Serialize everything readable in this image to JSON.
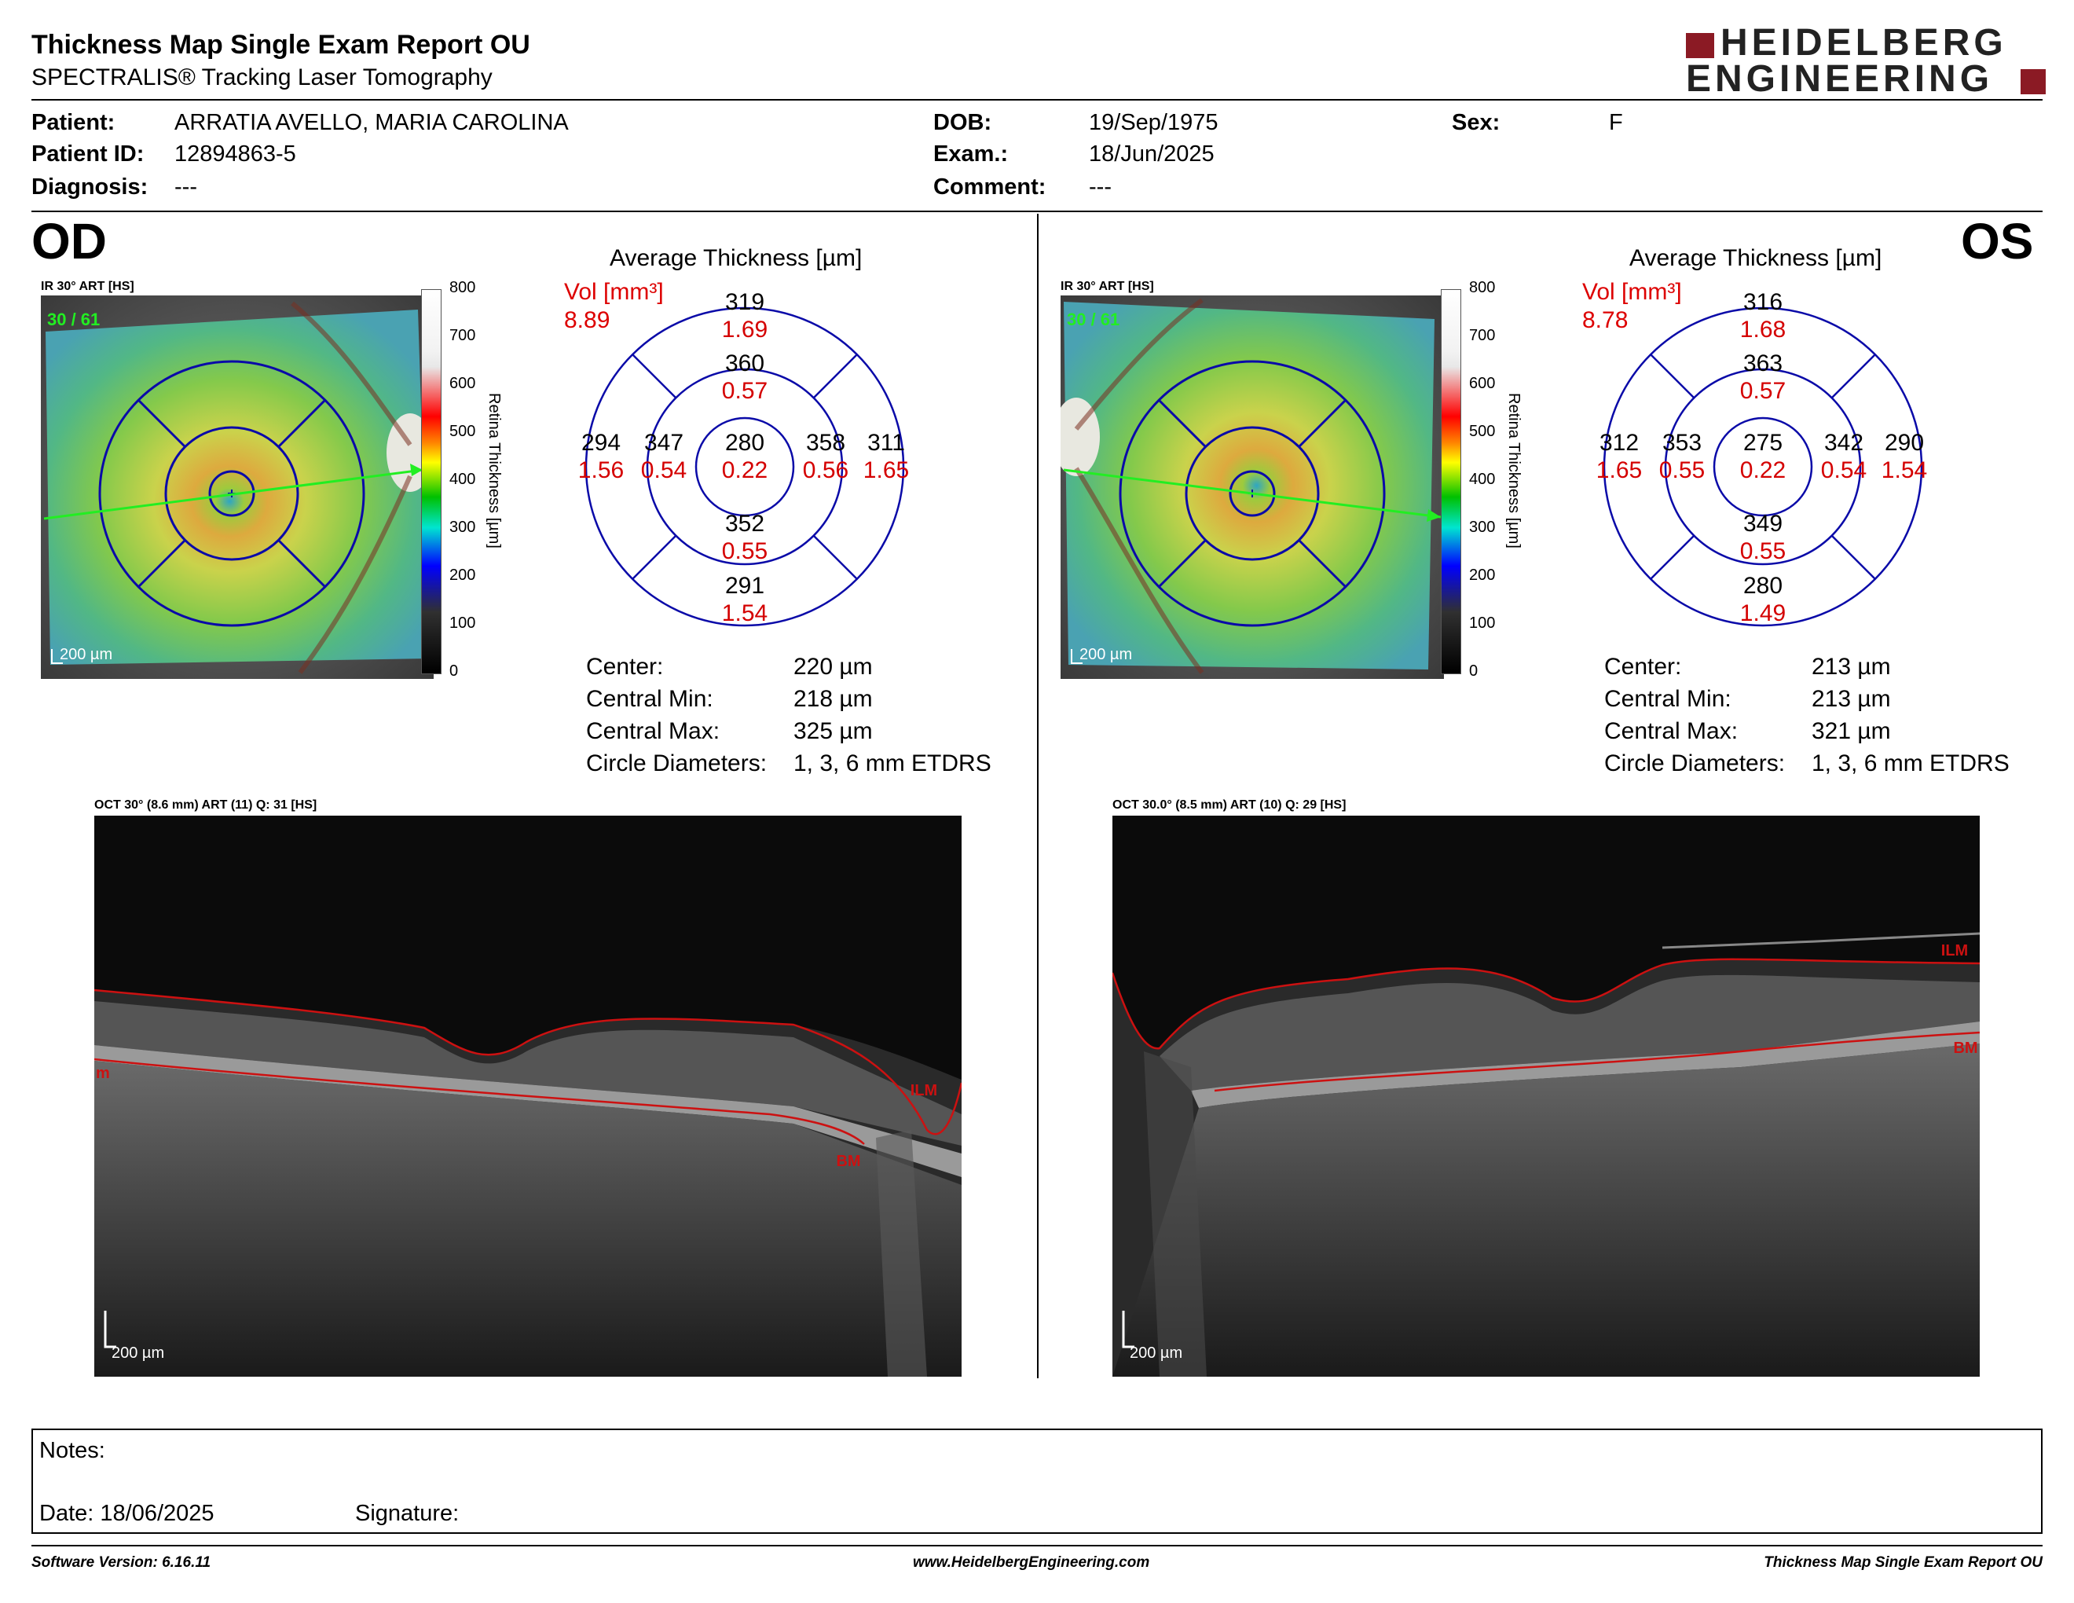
{
  "report": {
    "title": "Thickness Map Single Exam Report OU",
    "subtitle": "SPECTRALIS® Tracking Laser Tomography"
  },
  "logo": {
    "line1": "HEIDELBERG",
    "line2": "ENGINEERING",
    "brand_color": "#8b1a24"
  },
  "patient": {
    "patient_label": "Patient:",
    "patient_value": "ARRATIA AVELLO, MARIA CAROLINA",
    "id_label": "Patient ID:",
    "id_value": "12894863-5",
    "diagnosis_label": "Diagnosis:",
    "diagnosis_value": "---",
    "dob_label": "DOB:",
    "dob_value": "19/Sep/1975",
    "exam_label": "Exam.:",
    "exam_value": "18/Jun/2025",
    "comment_label": "Comment:",
    "comment_value": "---",
    "sex_label": "Sex:",
    "sex_value": "F"
  },
  "od": {
    "eye_label": "OD",
    "ir_label": "IR 30° ART [HS]",
    "frames": "30 / 61",
    "scale_bar": "200 µm",
    "avg_title": "Average Thickness [µm]",
    "vol_label": "Vol [mm³]",
    "vol_total": "8.89",
    "grid": {
      "center": {
        "t": "280",
        "v": "0.22"
      },
      "inner_top": {
        "t": "360",
        "v": "0.57"
      },
      "inner_bottom": {
        "t": "352",
        "v": "0.55"
      },
      "inner_left": {
        "t": "347",
        "v": "0.54"
      },
      "inner_right": {
        "t": "358",
        "v": "0.56"
      },
      "outer_top": {
        "t": "319",
        "v": "1.69"
      },
      "outer_bottom": {
        "t": "291",
        "v": "1.54"
      },
      "outer_left": {
        "t": "294",
        "v": "1.56"
      },
      "outer_right": {
        "t": "311",
        "v": "1.65"
      }
    },
    "stats": {
      "center_label": "Center:",
      "center_value": "220 µm",
      "min_label": "Central Min:",
      "min_value": "218 µm",
      "max_label": "Central Max:",
      "max_value": "325 µm",
      "circ_label": "Circle Diameters:",
      "circ_value": "1, 3, 6 mm ETDRS"
    },
    "oct_label": "OCT 30° (8.6 mm) ART (11) Q: 31 [HS]",
    "oct_scale": "200 µm",
    "ilm_label": "ILM",
    "bm_label": "BM",
    "bm_clipped": "m"
  },
  "os": {
    "eye_label": "OS",
    "ir_label": "IR 30° ART [HS]",
    "frames": "30 / 61",
    "scale_bar": "200 µm",
    "avg_title": "Average Thickness [µm]",
    "vol_label": "Vol [mm³]",
    "vol_total": "8.78",
    "grid": {
      "center": {
        "t": "275",
        "v": "0.22"
      },
      "inner_top": {
        "t": "363",
        "v": "0.57"
      },
      "inner_bottom": {
        "t": "349",
        "v": "0.55"
      },
      "inner_left": {
        "t": "353",
        "v": "0.55"
      },
      "inner_right": {
        "t": "342",
        "v": "0.54"
      },
      "outer_top": {
        "t": "316",
        "v": "1.68"
      },
      "outer_bottom": {
        "t": "280",
        "v": "1.49"
      },
      "outer_left": {
        "t": "312",
        "v": "1.65"
      },
      "outer_right": {
        "t": "290",
        "v": "1.54"
      }
    },
    "stats": {
      "center_label": "Center:",
      "center_value": "213 µm",
      "min_label": "Central Min:",
      "min_value": "213 µm",
      "max_label": "Central Max:",
      "max_value": "321 µm",
      "circ_label": "Circle Diameters:",
      "circ_value": "1, 3, 6 mm ETDRS"
    },
    "oct_label": "OCT 30.0° (8.5 mm) ART (10) Q: 29 [HS]",
    "oct_scale": "200 µm",
    "ilm_label": "ILM",
    "bm_label": "BM"
  },
  "color_scale": {
    "title": "Retina Thickness [µm]",
    "ticks": [
      "800",
      "700",
      "600",
      "500",
      "400",
      "300",
      "200",
      "100",
      "0"
    ]
  },
  "notes": {
    "notes_label": "Notes:",
    "date_label": "Date:",
    "date_value": "18/06/2025",
    "signature_label": "Signature:"
  },
  "footer": {
    "software": "Software Version: 6.16.11",
    "website": "www.HeidelbergEngineering.com",
    "report_name": "Thickness Map Single Exam Report OU"
  },
  "colors": {
    "grid_blue": "#0a0aa8",
    "value_red": "#d40000",
    "scan_green": "#22ee22",
    "segment_red": "#cc1111"
  }
}
